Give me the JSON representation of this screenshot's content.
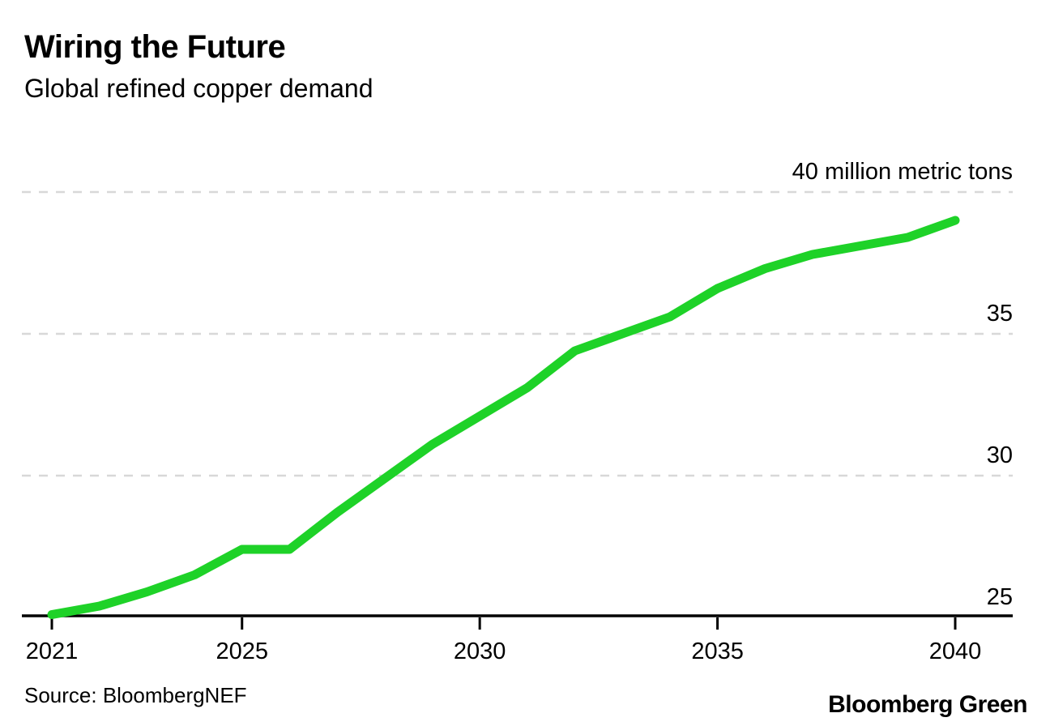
{
  "header": {
    "title": "Wiring the Future",
    "subtitle": "Global refined copper demand"
  },
  "footer": {
    "source": "Source: BloombergNEF",
    "brand": "Bloomberg Green"
  },
  "colors": {
    "line": "#1ed228",
    "gridline": "#d8d8d8",
    "axis": "#000000",
    "text": "#000000",
    "background": "#ffffff"
  },
  "chart_data": {
    "type": "line",
    "title": "Wiring the Future",
    "subtitle": "Global refined copper demand",
    "series_name": "Global refined copper demand",
    "unit": "million metric tons",
    "x": [
      2021,
      2022,
      2023,
      2024,
      2025,
      2026,
      2027,
      2028,
      2029,
      2030,
      2031,
      2032,
      2033,
      2034,
      2035,
      2036,
      2037,
      2038,
      2039,
      2040
    ],
    "values": [
      25.1,
      25.4,
      25.9,
      26.5,
      27.4,
      27.4,
      28.7,
      29.9,
      31.1,
      32.1,
      33.1,
      34.4,
      35.0,
      35.6,
      36.6,
      37.3,
      37.8,
      38.1,
      38.4,
      39.0
    ],
    "xlabel": "",
    "ylabel": "million metric tons",
    "xlim": [
      2021,
      2040
    ],
    "ylim": [
      25,
      40
    ],
    "x_ticks": [
      2021,
      2025,
      2030,
      2035,
      2040
    ],
    "y_ticks": [
      {
        "value": 40,
        "label": "40 million metric tons"
      },
      {
        "value": 35,
        "label": "35"
      },
      {
        "value": 30,
        "label": "30"
      },
      {
        "value": 25,
        "label": "25"
      }
    ],
    "gridlines_at": [
      40,
      35,
      30
    ],
    "grid": "horizontal-dashed",
    "legend_position": "none",
    "source": "Source: BloombergNEF"
  }
}
